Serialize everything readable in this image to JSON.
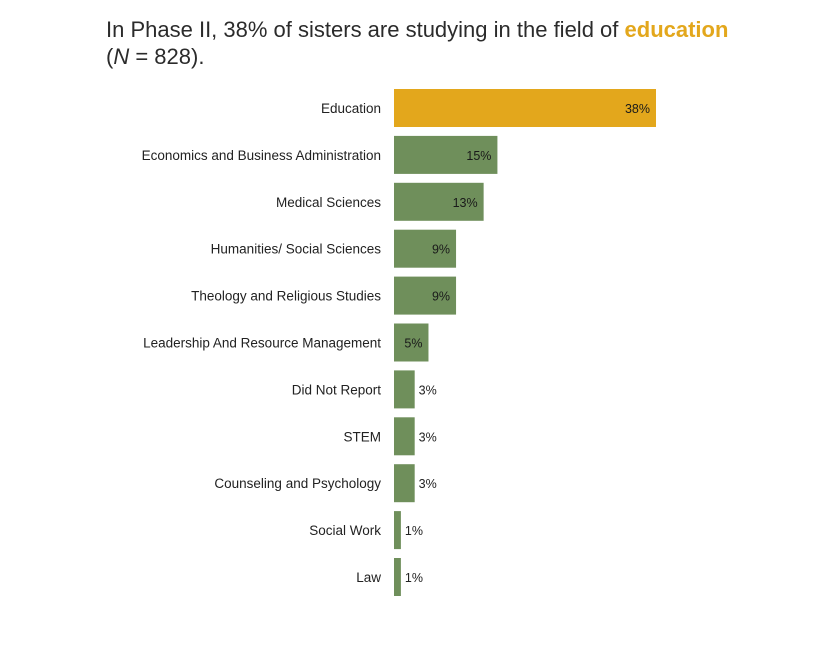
{
  "title": {
    "prefix": "In Phase II, 38% of sisters are studying in the field of ",
    "highlight": "education",
    "paren_open": " (",
    "n_symbol": "N",
    "n_rest": " = 828)."
  },
  "colors": {
    "highlight": "#e3a71c",
    "bar": "#6f8f5b",
    "text": "#222222"
  },
  "chart_data": {
    "type": "bar",
    "orientation": "horizontal",
    "categories": [
      "Education",
      "Economics and Business Administration",
      "Medical Sciences",
      "Humanities/ Social Sciences",
      "Theology and Religious Studies",
      "Leadership And Resource Management",
      "Did Not Report",
      "STEM",
      "Counseling and Psychology",
      "Social Work",
      "Law"
    ],
    "values": [
      38,
      15,
      13,
      9,
      9,
      5,
      3,
      3,
      3,
      1,
      1
    ],
    "value_labels": [
      "38%",
      "15%",
      "13%",
      "9%",
      "9%",
      "5%",
      "3%",
      "3%",
      "3%",
      "1%",
      "1%"
    ],
    "highlight_index": 0,
    "xlim": [
      0,
      38
    ],
    "grid": false,
    "legend": "none"
  }
}
